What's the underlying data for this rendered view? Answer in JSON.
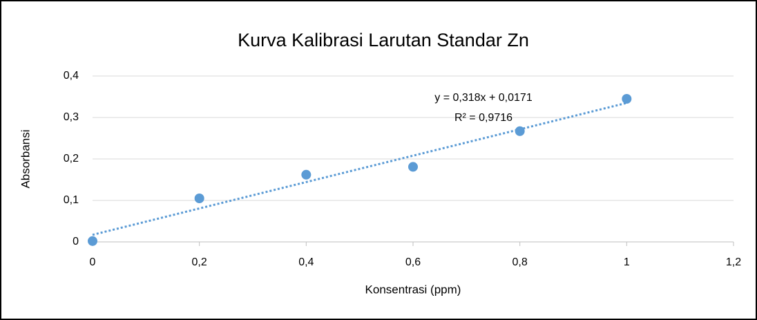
{
  "chart_data": {
    "type": "scatter",
    "title": "Kurva Kalibrasi Larutan Standar Zn",
    "x_label": "Konsentrasi (ppm)",
    "y_label": "Absorbansi",
    "series": [
      {
        "name": "Absorbansi",
        "color": "#5b9bd5",
        "x": [
          0,
          0.2,
          0.4,
          0.6,
          0.8,
          1
        ],
        "values": [
          0.002,
          0.105,
          0.162,
          0.181,
          0.267,
          0.345
        ]
      }
    ],
    "trendline": {
      "slope": 0.318,
      "intercept": 0.0171,
      "r2": 0.9716,
      "equation_label": "y = 0,318x + 0,0171",
      "r2_label": "R² = 0,9716"
    },
    "xlim": [
      0,
      1.2
    ],
    "xticks": [
      0,
      {
        "value": 0.2,
        "label": "0,2"
      },
      {
        "value": 0.4,
        "label": "0,4"
      },
      {
        "value": 0.6,
        "label": "0,6"
      },
      {
        "value": 0.8,
        "label": "0,8"
      },
      1,
      {
        "value": 1.2,
        "label": "1,2"
      }
    ],
    "ylim": [
      0,
      0.4
    ],
    "yticks": [
      0,
      {
        "value": 0.1,
        "label": "0,1"
      },
      {
        "value": 0.2,
        "label": "0,2"
      },
      {
        "value": 0.3,
        "label": "0,3"
      },
      {
        "value": 0.4,
        "label": "0,4"
      }
    ],
    "grid": true
  }
}
